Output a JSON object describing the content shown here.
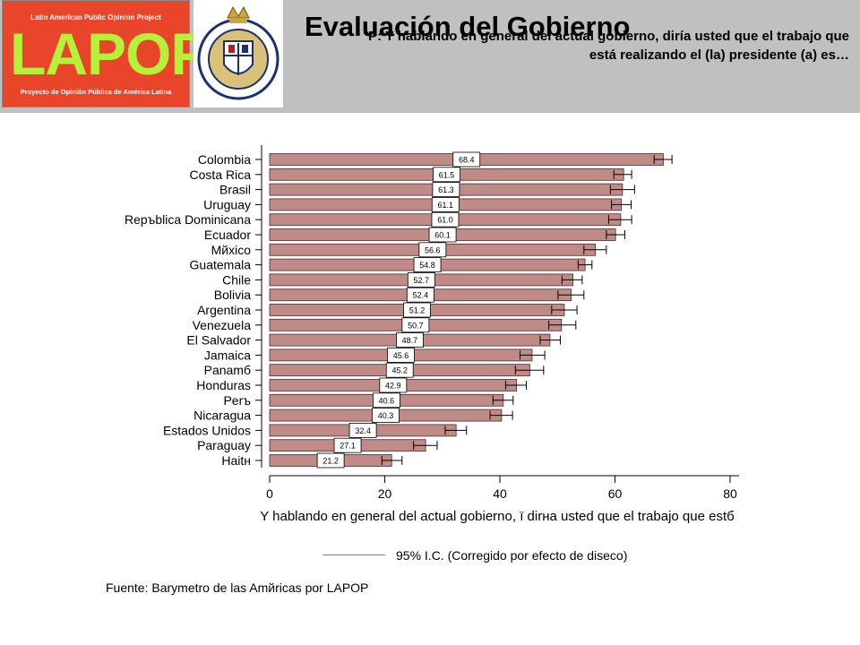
{
  "header": {
    "lapop_top": "Latin American Public Opinion Project",
    "lapop_word": "LAPOP",
    "lapop_bottom": "Proyecto de Opinión Pública de América Latina",
    "title": "Evaluación del Gobierno",
    "question": "P: Y hablando en general del actual gobierno, diría usted que el trabajo que está realizando el (la) presidente (a) es…"
  },
  "chart_data": {
    "type": "bar",
    "orientation": "horizontal",
    "categories": [
      "Colombia",
      "Costa Rica",
      "Brasil",
      "Uruguay",
      "Repъblica Dominicana",
      "Ecuador",
      "Mйxico",
      "Guatemala",
      "Chile",
      "Bolivia",
      "Argentina",
      "Venezuela",
      "El Salvador",
      "Jamaica",
      "Panamб",
      "Honduras",
      "Perъ",
      "Nicaragua",
      "Estados Unidos",
      "Paraguay",
      "Haitн"
    ],
    "values": [
      68.4,
      61.5,
      61.3,
      61.1,
      61.0,
      60.1,
      56.6,
      54.8,
      52.7,
      52.4,
      51.2,
      50.7,
      48.7,
      45.6,
      45.2,
      42.9,
      40.6,
      40.3,
      32.4,
      27.1,
      21.2
    ],
    "value_labels": [
      "68.4",
      "61.5",
      "61.3",
      "61.1",
      "61.0",
      "60.1",
      "56.6",
      "54.8",
      "52.7",
      "52.4",
      "51.2",
      "50.7",
      "48.7",
      "45.6",
      "45.2",
      "42.9",
      "40.6",
      "40.3",
      "32.4",
      "27.1",
      "21.2"
    ],
    "ci_low": [
      66.8,
      59.8,
      59.2,
      59.4,
      58.9,
      58.5,
      54.6,
      53.6,
      50.8,
      50.1,
      49.0,
      48.5,
      47.0,
      43.5,
      42.7,
      41.0,
      38.8,
      38.3,
      30.5,
      25.0,
      19.5
    ],
    "ci_high": [
      69.9,
      62.9,
      63.4,
      62.8,
      62.9,
      61.7,
      58.5,
      56.0,
      54.3,
      54.6,
      53.4,
      53.2,
      50.5,
      47.8,
      47.6,
      44.6,
      42.3,
      42.2,
      34.2,
      29.1,
      23.0
    ],
    "xlabel": "Y hablando en general del actual gobierno, ї dirнa usted que el trabajo que estб",
    "xlim": [
      0,
      80
    ],
    "xticks": [
      "0",
      "20",
      "40",
      "60",
      "80"
    ],
    "colors": {
      "bar": "#c08a87",
      "bar_edge": "#4a2a2a",
      "label_box": "#ffffff"
    },
    "legend": {
      "text": "95% I.C. (Corregido por efecto de diseco)",
      "placement": "bottom"
    }
  },
  "footer": {
    "source": "Fuente: Barymetro de las Amйricas por LAPOP"
  }
}
